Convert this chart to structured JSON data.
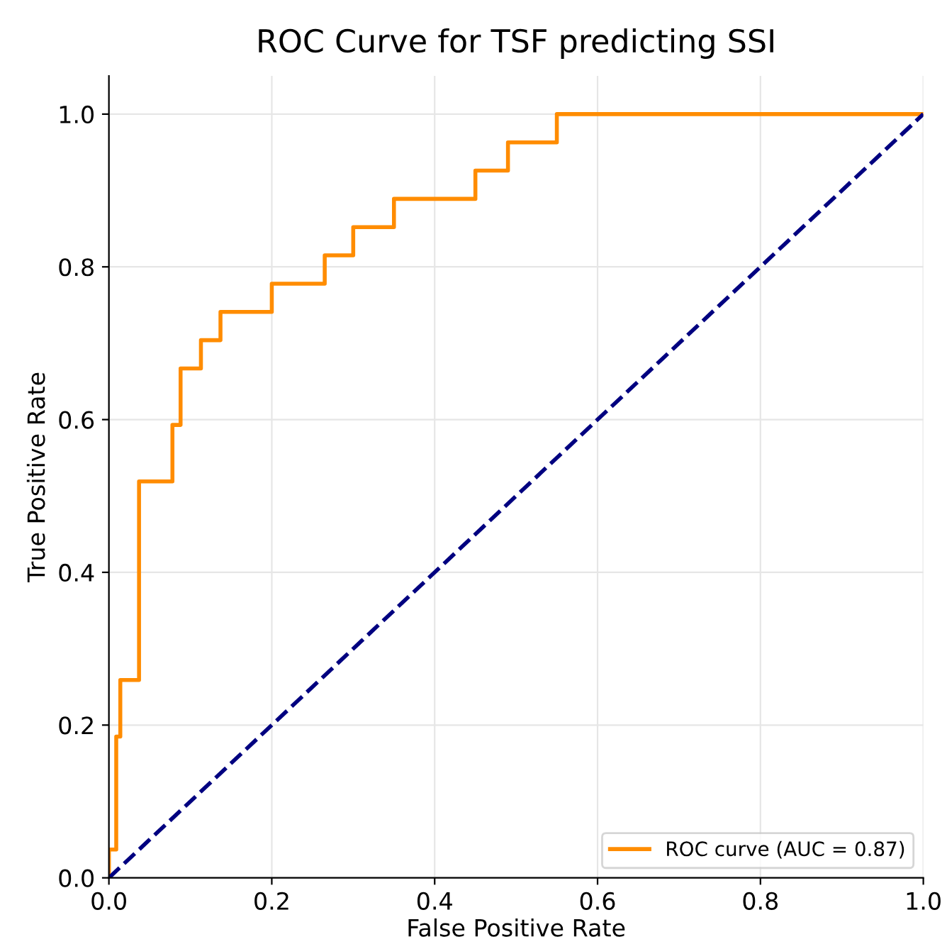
{
  "chart_data": {
    "type": "line",
    "title": "ROC Curve for TSF predicting SSI",
    "xlabel": "False Positive Rate",
    "ylabel": "True Positive Rate",
    "series": [
      {
        "name": "ROC curve (AUC = 0.87)",
        "type": "step",
        "color": "#ff8c00",
        "line_style": "solid",
        "x": [
          0,
          0,
          0.009,
          0.014,
          0.037,
          0.078,
          0.088,
          0.113,
          0.137,
          0.2,
          0.265,
          0.3,
          0.35,
          0.45,
          0.49,
          0.55,
          1.0
        ],
        "values": [
          0,
          0.037,
          0.185,
          0.259,
          0.519,
          0.593,
          0.667,
          0.704,
          0.741,
          0.778,
          0.815,
          0.852,
          0.889,
          0.926,
          0.963,
          1.0,
          1.0
        ]
      },
      {
        "color": "#000080",
        "line_style": "dashed",
        "x": [
          0,
          1
        ],
        "values": [
          0,
          1
        ]
      }
    ],
    "xlim": [
      0,
      1
    ],
    "ylim": [
      0,
      1.05
    ],
    "xticks": [
      "0.0",
      0.2,
      0.4,
      0.6,
      0.8,
      "1.0"
    ],
    "yticks": [
      "0.0",
      0.2,
      0.4,
      0.6,
      0.8,
      "1.0"
    ],
    "grid": true,
    "legend": "lower right"
  }
}
